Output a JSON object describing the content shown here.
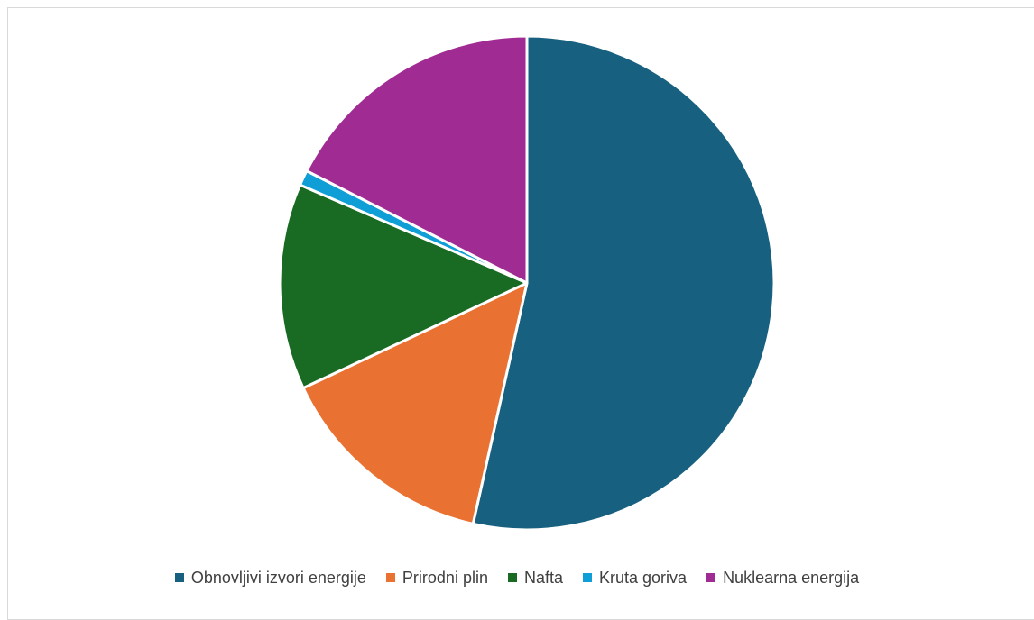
{
  "chart_data": {
    "type": "pie",
    "title": "",
    "categories": [
      "Obnovljivi izvori energije",
      "Prirodni plin",
      "Nafta",
      "Kruta goriva",
      "Nuklearna energija"
    ],
    "values": [
      53.5,
      14.5,
      13.5,
      1.0,
      17.5
    ],
    "colors": [
      "#17607f",
      "#e97132",
      "#196b24",
      "#0f9ed5",
      "#a02b93"
    ],
    "start_angle_deg": 0,
    "direction": "clockwise",
    "legend_position": "bottom"
  }
}
